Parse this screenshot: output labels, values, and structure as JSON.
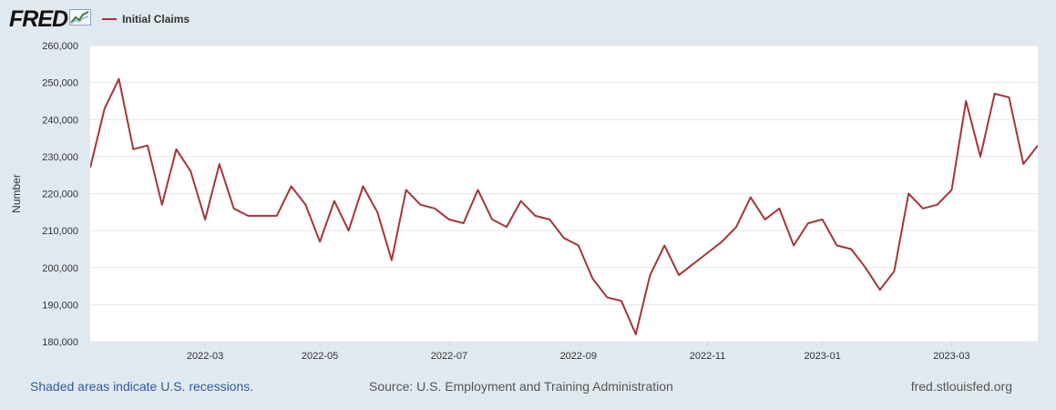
{
  "brand": {
    "logo_text": "FRED",
    "logo_icon": "chart-line-icon"
  },
  "colors": {
    "series": "#a5343a",
    "background": "#e1e9f0",
    "plot_bg": "#ffffff",
    "grid": "#e6e6e6"
  },
  "chart_data": {
    "type": "line",
    "title": "",
    "xlabel": "",
    "ylabel": "Number",
    "ylim": [
      180000,
      260000
    ],
    "y_ticks": [
      180000,
      190000,
      200000,
      210000,
      220000,
      230000,
      240000,
      250000,
      260000
    ],
    "y_tick_labels": [
      "180,000",
      "190,000",
      "200,000",
      "210,000",
      "220,000",
      "230,000",
      "240,000",
      "250,000",
      "260,000"
    ],
    "x_ticks": [
      8,
      16,
      25,
      34,
      43,
      51,
      60
    ],
    "x_tick_labels": [
      "2022-03",
      "2022-05",
      "2022-07",
      "2022-09",
      "2022-11",
      "2023-01",
      "2023-03"
    ],
    "x_range": [
      0,
      66
    ],
    "grid": true,
    "legend": "top-left",
    "series": [
      {
        "name": "Initial Claims",
        "x": [
          0,
          1,
          2,
          3,
          4,
          5,
          6,
          7,
          8,
          9,
          10,
          11,
          12,
          13,
          14,
          15,
          16,
          17,
          18,
          19,
          20,
          21,
          22,
          23,
          24,
          25,
          26,
          27,
          28,
          29,
          30,
          31,
          32,
          33,
          34,
          35,
          36,
          37,
          38,
          39,
          40,
          41,
          42,
          43,
          44,
          45,
          46,
          47,
          48,
          49,
          50,
          51,
          52,
          53,
          54,
          55,
          56,
          57,
          58,
          59,
          60,
          61,
          62,
          63,
          64,
          65,
          66
        ],
        "values": [
          227000,
          243000,
          251000,
          232000,
          233000,
          217000,
          232000,
          226000,
          213000,
          228000,
          216000,
          214000,
          214000,
          214000,
          222000,
          217000,
          207000,
          218000,
          210000,
          222000,
          215000,
          202000,
          221000,
          217000,
          216000,
          213000,
          212000,
          221000,
          213000,
          211000,
          218000,
          214000,
          213000,
          208000,
          206000,
          197000,
          192000,
          191000,
          182000,
          198000,
          206000,
          198000,
          201000,
          204000,
          207000,
          211000,
          219000,
          213000,
          216000,
          206000,
          212000,
          213000,
          206000,
          205000,
          200000,
          194000,
          199000,
          220000,
          216000,
          217000,
          221000,
          245000,
          230000,
          247000,
          246000,
          228000,
          233000
        ]
      }
    ]
  },
  "footer": {
    "recession_note": "Shaded areas indicate U.S. recessions.",
    "source": "Source: U.S. Employment and Training Administration",
    "site": "fred.stlouisfed.org"
  }
}
